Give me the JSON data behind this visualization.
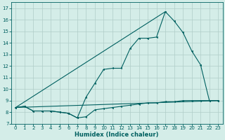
{
  "title": "",
  "xlabel": "Humidex (Indice chaleur)",
  "bg_color": "#d4ede8",
  "grid_color": "#b0ccc8",
  "line_color": "#006060",
  "xlim": [
    -0.5,
    23.5
  ],
  "ylim": [
    7,
    17.5
  ],
  "yticks": [
    7,
    8,
    9,
    10,
    11,
    12,
    13,
    14,
    15,
    16,
    17
  ],
  "xticks": [
    0,
    1,
    2,
    3,
    4,
    5,
    6,
    7,
    8,
    9,
    10,
    11,
    12,
    13,
    14,
    15,
    16,
    17,
    18,
    19,
    20,
    21,
    22,
    23
  ],
  "series1_x": [
    0,
    1,
    2,
    3,
    4,
    5,
    6,
    7,
    8,
    9,
    10,
    11,
    12,
    13,
    14,
    15,
    16,
    17,
    18,
    19,
    20,
    21,
    22,
    23
  ],
  "series1_y": [
    8.4,
    8.5,
    8.1,
    8.1,
    8.1,
    8.0,
    7.9,
    7.5,
    7.6,
    8.2,
    8.3,
    8.4,
    8.5,
    8.6,
    8.7,
    8.8,
    8.8,
    8.9,
    8.9,
    9.0,
    9.0,
    9.0,
    9.0,
    9.0
  ],
  "series2_x": [
    0,
    1,
    2,
    3,
    4,
    5,
    6,
    7,
    8,
    9,
    10,
    11,
    12,
    13,
    14,
    15,
    16,
    17,
    18,
    19,
    20,
    21,
    22,
    23
  ],
  "series2_y": [
    8.4,
    8.5,
    8.1,
    8.1,
    8.1,
    8.0,
    7.9,
    7.5,
    9.3,
    10.5,
    11.7,
    11.8,
    11.8,
    13.5,
    14.4,
    14.4,
    14.5,
    16.7,
    15.9,
    14.9,
    13.3,
    12.1,
    9.0,
    9.0
  ],
  "series3_x": [
    0,
    23
  ],
  "series3_y": [
    8.4,
    9.0
  ],
  "series4_x": [
    0,
    17
  ],
  "series4_y": [
    8.4,
    16.7
  ],
  "tick_fontsize": 5.0,
  "xlabel_fontsize": 6.0,
  "lw": 0.8,
  "ms": 1.8
}
